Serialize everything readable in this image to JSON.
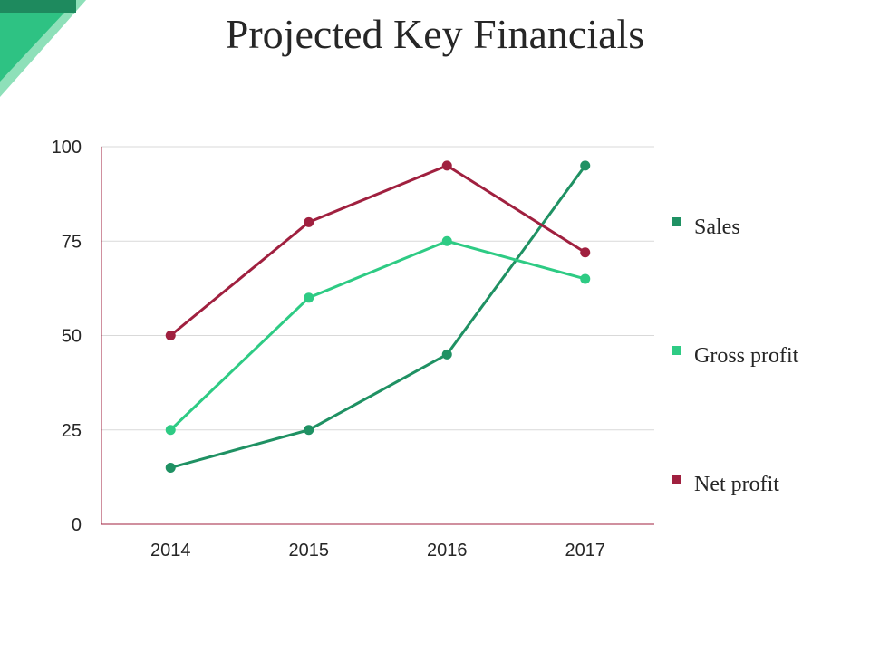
{
  "colors": {
    "sales": "#1f9163",
    "gross_profit": "#2ecb84",
    "net_profit": "#a0203f",
    "accent_dark": "#1fa46c",
    "accent_light": "#8ee0b9",
    "grid": "#d9d9d9",
    "axis": "#a0203f"
  },
  "chart_data": {
    "type": "line",
    "title": "Projected Key Financials",
    "xlabel": "",
    "ylabel": "",
    "categories": [
      "2014",
      "2015",
      "2016",
      "2017"
    ],
    "ylim": [
      0,
      100
    ],
    "yticks": [
      "0",
      "25",
      "50",
      "75",
      "100"
    ],
    "grid": true,
    "legend_position": "right",
    "series": [
      {
        "name": "Sales",
        "values": [
          15,
          25,
          45,
          95
        ]
      },
      {
        "name": "Gross profit",
        "values": [
          25,
          60,
          75,
          65
        ]
      },
      {
        "name": "Net profit",
        "values": [
          50,
          80,
          95,
          72
        ]
      }
    ]
  }
}
